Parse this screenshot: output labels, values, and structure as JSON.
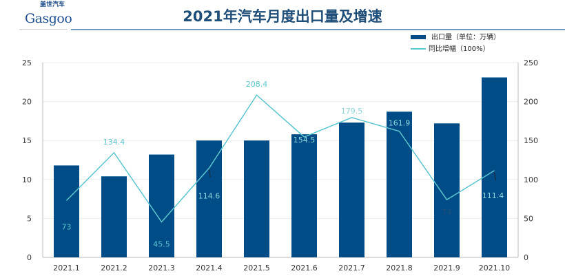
{
  "logo": {
    "brand": "Gasgoo",
    "brand_cn": "盖世汽车"
  },
  "chart_data": {
    "type": "bar+line",
    "title": "2021年汽车月度出口量及增速",
    "categories": [
      "2021.1",
      "2021.2",
      "2021.3",
      "2021.4",
      "2021.5",
      "2021.6",
      "2021.7",
      "2021.8",
      "2021.9",
      "2021.10"
    ],
    "series": [
      {
        "name": "出口量（单位：万辆）",
        "type": "bar",
        "axis": "left",
        "color": "#004c87",
        "values": [
          11.8,
          10.4,
          13.2,
          15.0,
          15.0,
          15.8,
          17.3,
          18.7,
          17.2,
          23.1
        ]
      },
      {
        "name": "同比增幅（100%）",
        "type": "line",
        "axis": "right",
        "color": "#5bc5cf",
        "values": [
          73,
          134.4,
          45.5,
          114.6,
          208.4,
          154.5,
          179.5,
          161.9,
          74,
          111.4
        ],
        "labels": [
          "73",
          "134.4",
          "45.5",
          "114.6",
          "208.4",
          "154.5",
          "179.5",
          "161.9",
          "74",
          "111.4"
        ]
      }
    ],
    "y_left": {
      "range": [
        0,
        25
      ],
      "ticks": [
        "0",
        "5",
        "10",
        "15",
        "20",
        "25"
      ]
    },
    "y_right": {
      "range": [
        0,
        250
      ],
      "ticks": [
        "0",
        "50",
        "100",
        "150",
        "200",
        "250"
      ]
    },
    "grid": true,
    "legend": "top-right"
  }
}
